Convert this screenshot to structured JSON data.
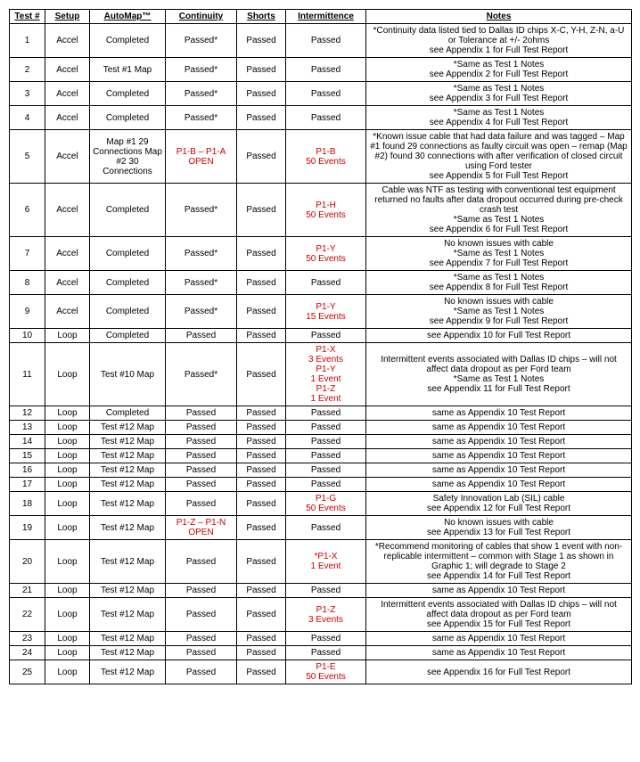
{
  "headers": {
    "test": "Test #",
    "setup": "Setup",
    "automap": "AutoMap™",
    "continuity": "Continuity",
    "shorts": "Shorts",
    "intermittence": "Intermittence",
    "notes": "Notes"
  },
  "rows": [
    {
      "test": "1",
      "setup": "Accel",
      "automap": "Completed",
      "continuity": "Passed*",
      "shorts": "Passed",
      "intermittence": "Passed",
      "notes": "*Continuity data listed tied to Dallas ID chips X-C, Y-H, Z-N, a-U or Tolerance at +/- 2ohms\nsee Appendix 1 for Full Test Report"
    },
    {
      "test": "2",
      "setup": "Accel",
      "automap": "Test #1 Map",
      "continuity": "Passed*",
      "shorts": "Passed",
      "intermittence": "Passed",
      "notes": "*Same as Test 1 Notes\nsee Appendix 2 for Full Test Report"
    },
    {
      "test": "3",
      "setup": "Accel",
      "automap": "Completed",
      "continuity": "Passed*",
      "shorts": "Passed",
      "intermittence": "Passed",
      "notes": "*Same as Test 1 Notes\nsee Appendix 3 for Full Test Report"
    },
    {
      "test": "4",
      "setup": "Accel",
      "automap": "Completed",
      "continuity": "Passed*",
      "shorts": "Passed",
      "intermittence": "Passed",
      "notes": "*Same as Test 1 Notes\nsee Appendix 4 for Full Test Report"
    },
    {
      "test": "5",
      "setup": "Accel",
      "automap": "Map #1 29 Connections Map #2 30 Connections",
      "continuity": "P1-B – P1-A OPEN",
      "continuity_fail": true,
      "shorts": "Passed",
      "intermittence": "P1-B\n50 Events",
      "intermittence_fail": true,
      "notes": "*Known issue cable that had data failure and was tagged – Map #1 found 29 connections as faulty circuit was open – remap (Map #2) found 30 connections with after verification of closed circuit using Ford tester\nsee Appendix 5 for Full Test Report"
    },
    {
      "test": "6",
      "setup": "Accel",
      "automap": "Completed",
      "continuity": "Passed*",
      "shorts": "Passed",
      "intermittence": "P1-H\n50 Events",
      "intermittence_fail": true,
      "notes": "Cable was NTF as testing with conventional test equipment returned no faults after data dropout occurred during pre-check crash test\n*Same as Test 1 Notes\nsee Appendix 6 for Full Test Report"
    },
    {
      "test": "7",
      "setup": "Accel",
      "automap": "Completed",
      "continuity": "Passed*",
      "shorts": "Passed",
      "intermittence": "P1-Y\n50 Events",
      "intermittence_fail": true,
      "notes": "No known issues with cable\n*Same as Test 1 Notes\nsee Appendix 7 for Full Test Report"
    },
    {
      "test": "8",
      "setup": "Accel",
      "automap": "Completed",
      "continuity": "Passed*",
      "shorts": "Passed",
      "intermittence": "Passed",
      "notes": "*Same as Test 1 Notes\nsee Appendix 8 for Full Test Report"
    },
    {
      "test": "9",
      "setup": "Accel",
      "automap": "Completed",
      "continuity": "Passed*",
      "shorts": "Passed",
      "intermittence": "P1-Y\n15 Events",
      "intermittence_fail": true,
      "notes": "No known issues with cable\n*Same as Test 1 Notes\nsee Appendix 9 for Full Test Report"
    },
    {
      "test": "10",
      "setup": "Loop",
      "automap": "Completed",
      "continuity": "Passed",
      "shorts": "Passed",
      "intermittence": "Passed",
      "notes": "see Appendix 10 for Full Test Report"
    },
    {
      "test": "11",
      "setup": "Loop",
      "automap": "Test #10 Map",
      "continuity": "Passed*",
      "shorts": "Passed",
      "intermittence": "P1-X\n3 Events\nP1-Y\n1 Event\nP1-Z\n1 Event",
      "intermittence_fail": true,
      "notes": "Intermittent events associated with Dallas ID chips – will not affect data dropout as per Ford team\n*Same as Test 1 Notes\nsee Appendix 11 for Full Test Report"
    },
    {
      "test": "12",
      "setup": "Loop",
      "automap": "Completed",
      "continuity": "Passed",
      "shorts": "Passed",
      "intermittence": "Passed",
      "notes": "same as Appendix 10 Test Report"
    },
    {
      "test": "13",
      "setup": "Loop",
      "automap": "Test #12 Map",
      "continuity": "Passed",
      "shorts": "Passed",
      "intermittence": "Passed",
      "notes": "same as Appendix 10 Test Report"
    },
    {
      "test": "14",
      "setup": "Loop",
      "automap": "Test #12 Map",
      "continuity": "Passed",
      "shorts": "Passed",
      "intermittence": "Passed",
      "notes": "same as Appendix 10 Test Report"
    },
    {
      "test": "15",
      "setup": "Loop",
      "automap": "Test #12 Map",
      "continuity": "Passed",
      "shorts": "Passed",
      "intermittence": "Passed",
      "notes": "same as Appendix 10 Test Report"
    },
    {
      "test": "16",
      "setup": "Loop",
      "automap": "Test #12 Map",
      "continuity": "Passed",
      "shorts": "Passed",
      "intermittence": "Passed",
      "notes": "same as Appendix 10 Test Report"
    },
    {
      "test": "17",
      "setup": "Loop",
      "automap": "Test #12 Map",
      "continuity": "Passed",
      "shorts": "Passed",
      "intermittence": "Passed",
      "notes": "same as Appendix 10 Test Report"
    },
    {
      "test": "18",
      "setup": "Loop",
      "automap": "Test #12 Map",
      "continuity": "Passed",
      "shorts": "Passed",
      "intermittence": "P1-G\n50 Events",
      "intermittence_fail": true,
      "notes": "Safety Innovation Lab (SIL) cable\nsee Appendix 12 for Full Test Report"
    },
    {
      "test": "19",
      "setup": "Loop",
      "automap": "Test #12 Map",
      "continuity": "P1-Z – P1-N OPEN",
      "continuity_fail": true,
      "shorts": "Passed",
      "intermittence": "Passed",
      "notes": "No known issues with cable\nsee Appendix 13 for Full Test Report"
    },
    {
      "test": "20",
      "setup": "Loop",
      "automap": "Test #12 Map",
      "continuity": "Passed",
      "shorts": "Passed",
      "intermittence": "*P1-X\n1 Event",
      "intermittence_fail": true,
      "notes": "*Recommend monitoring of cables that show 1 event with non-replicable intermittent – common with Stage 1 as shown in Graphic 1; will degrade to Stage 2\nsee Appendix 14 for Full Test Report"
    },
    {
      "test": "21",
      "setup": "Loop",
      "automap": "Test #12 Map",
      "continuity": "Passed",
      "shorts": "Passed",
      "intermittence": "Passed",
      "notes": "same as Appendix 10 Test Report"
    },
    {
      "test": "22",
      "setup": "Loop",
      "automap": "Test #12 Map",
      "continuity": "Passed",
      "shorts": "Passed",
      "intermittence": "P1-Z\n3 Events",
      "intermittence_fail": true,
      "notes": "Intermittent events associated with Dallas ID chips – will not affect data dropout as per Ford team\nsee Appendix 15 for Full Test Report"
    },
    {
      "test": "23",
      "setup": "Loop",
      "automap": "Test #12 Map",
      "continuity": "Passed",
      "shorts": "Passed",
      "intermittence": "Passed",
      "notes": "same as Appendix 10 Test Report"
    },
    {
      "test": "24",
      "setup": "Loop",
      "automap": "Test #12 Map",
      "continuity": "Passed",
      "shorts": "Passed",
      "intermittence": "Passed",
      "notes": "same as Appendix 10 Test Report"
    },
    {
      "test": "25",
      "setup": "Loop",
      "automap": "Test #12 Map",
      "continuity": "Passed",
      "shorts": "Passed",
      "intermittence": "P1-E\n50 Events",
      "intermittence_fail": true,
      "notes": "see Appendix 16 for Full Test Report"
    }
  ]
}
